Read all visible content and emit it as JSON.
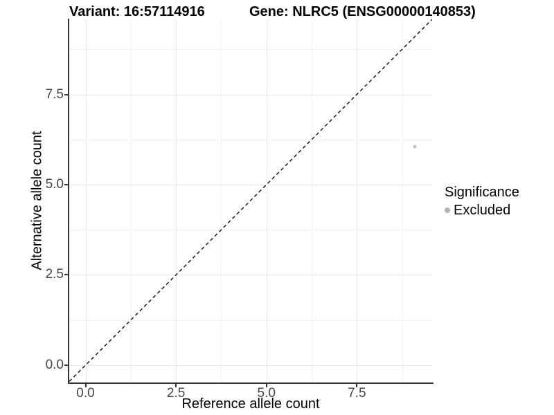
{
  "titles": {
    "variant": "Variant: 16:57114916",
    "gene": "Gene: NLRC5 (ENSG00000140853)"
  },
  "legend": {
    "title": "Significance",
    "items": [
      {
        "label": "Excluded",
        "color": "#b5b5b5"
      }
    ]
  },
  "chart_data": {
    "type": "scatter",
    "title": "Variant: 16:57114916 — Gene: NLRC5 (ENSG00000140853)",
    "xlabel": "Reference allele count",
    "ylabel": "Alternative allele count",
    "xlim": [
      -0.45,
      9.58
    ],
    "ylim": [
      -0.48,
      9.58
    ],
    "x_major_ticks": [
      0,
      2.5,
      5,
      7.5
    ],
    "y_major_ticks": [
      0,
      2.5,
      5,
      7.5
    ],
    "x_minor_gridlines": [
      1.25,
      3.75,
      6.25,
      8.75
    ],
    "y_minor_gridlines": [
      1.25,
      3.75,
      6.25,
      8.75
    ],
    "tick_decimals": 1,
    "grid": true,
    "legend_position": "right",
    "series": [
      {
        "name": "Excluded",
        "color": "#c2c2c2",
        "points": [
          {
            "x": 9.1,
            "y": 6.05
          }
        ]
      }
    ],
    "reference_line": {
      "slope": 1,
      "intercept": 0,
      "style": "dashed",
      "color": "#1a1a1a"
    }
  }
}
